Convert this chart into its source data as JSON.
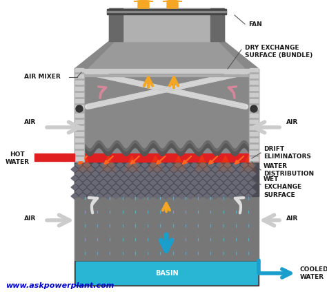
{
  "bg_color": "#ffffff",
  "tower_gray1": "#888888",
  "tower_gray2": "#6a6a6a",
  "tower_gray3": "#aaaaaa",
  "tower_gray4": "#999999",
  "tower_dark": "#555555",
  "basin_color": "#29b6d4",
  "red_color": "#e02020",
  "orange_color": "#f5a623",
  "pink_color": "#d4879a",
  "gray_arrow": "#bbbbbb",
  "white_color": "#ffffff",
  "blue_arrow": "#29a8d4",
  "wet_dark": "#4a4a5a",
  "label_color": "#1a1a1a",
  "website_color": "#0000cc",
  "labels": {
    "air_mixer": "AIR MIXER",
    "fan": "FAN",
    "dry_exchange": "DRY EXCHANGE\nSURFACE (BUNDLE)",
    "air": "AIR",
    "hot_water": "HOT\nWATER",
    "drift_elim": "DRIFT\nELIMINATORS",
    "water_dist": "WATER\nDISTRIBUTION",
    "wet_exchange": "WET\nEXCHANGE\nSURFACE",
    "basin": "BASIN",
    "cooled_water": "COOLED\nWATER",
    "website": "www.askpowerplant.com"
  }
}
